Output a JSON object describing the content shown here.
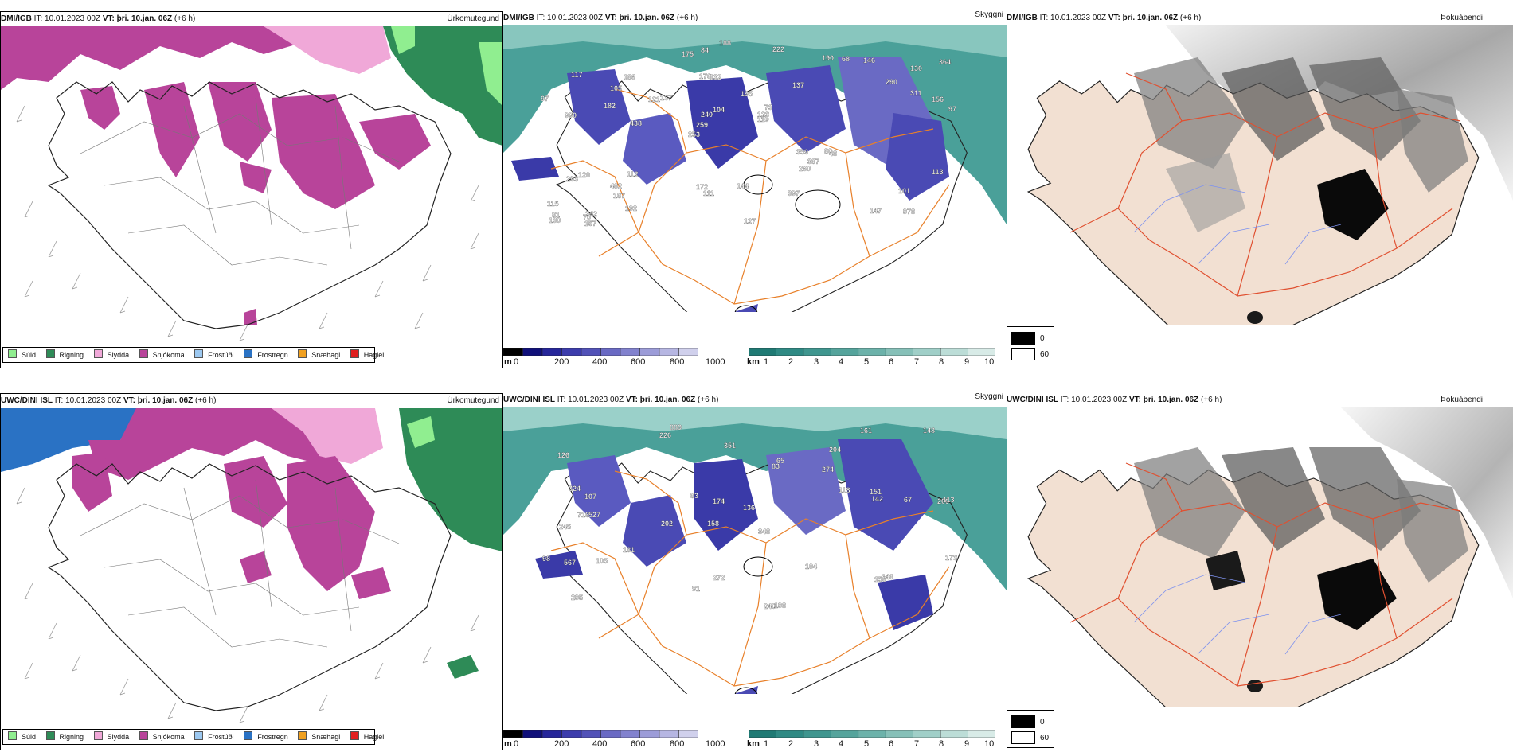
{
  "rows": [
    {
      "source": "DMI/IGB",
      "panels": [
        {
          "id": "precip",
          "title": "Úrkomutegund",
          "it": "IT: 10.01.2023 00Z",
          "vt": "VT: þri. 10.jan. 06Z",
          "lead": "(+6 h)"
        },
        {
          "id": "cloud",
          "title": "Skyggni",
          "it": "IT: 10.01.2023 00Z",
          "vt": "VT: þri. 10.jan. 06Z",
          "lead": "(+6 h)",
          "labels": [
            "978",
            "990",
            "130",
            "253",
            "137",
            "242",
            "176",
            "195",
            "120",
            "137",
            "115",
            "187",
            "132",
            "73",
            "48",
            "117",
            "84",
            "97",
            "359",
            "311",
            "259",
            "172",
            "240",
            "186",
            "190",
            "112",
            "147",
            "101",
            "80",
            "127",
            "121",
            "182",
            "260",
            "192",
            "156",
            "123",
            "81",
            "111",
            "110",
            "293",
            "290",
            "364",
            "387",
            "397",
            "402",
            "157",
            "130",
            "144",
            "146",
            "188",
            "438",
            "97",
            "105",
            "68",
            "70",
            "222",
            "175",
            "104",
            "113"
          ]
        },
        {
          "id": "fog",
          "title": "Þokuábendi",
          "it": "IT: 10.01.2023 00Z",
          "vt": "VT: þri. 10.jan. 06Z",
          "lead": "(+6 h)"
        }
      ]
    },
    {
      "source": "UWC/DINI ISL",
      "panels": [
        {
          "id": "precip",
          "title": "Úrkomutegund",
          "it": "IT: 10.01.2023 00Z",
          "vt": "VT: þri. 10.jan. 06Z",
          "lead": "(+6 h)"
        },
        {
          "id": "cloud",
          "title": "Skyggni",
          "it": "IT: 10.01.2023 00Z",
          "vt": "VT: þri. 10.jan. 06Z",
          "lead": "(+6 h)",
          "labels": [
            "889",
            "204",
            "209",
            "158",
            "348",
            "527",
            "126",
            "274",
            "245",
            "83",
            "136",
            "295",
            "226",
            "202",
            "240",
            "198",
            "272",
            "161",
            "118",
            "181",
            "107",
            "718",
            "113",
            "67",
            "98",
            "324",
            "174",
            "142",
            "148",
            "567",
            "156",
            "65",
            "105",
            "83",
            "104",
            "173",
            "151",
            "91",
            "148",
            "351"
          ]
        },
        {
          "id": "fog",
          "title": "Þokuábendi",
          "it": "IT: 10.01.2023 00Z",
          "vt": "VT: þri. 10.jan. 06Z",
          "lead": "(+6 h)"
        }
      ]
    }
  ],
  "precip_legend": [
    {
      "label": "Súld",
      "color": "#90ee90"
    },
    {
      "label": "Rigning",
      "color": "#2e8b57"
    },
    {
      "label": "Slydda",
      "color": "#f0a8d8"
    },
    {
      "label": "Snjókoma",
      "color": "#b8449a"
    },
    {
      "label": "Frostúði",
      "color": "#9cc8f0"
    },
    {
      "label": "Frostregn",
      "color": "#2a72c4"
    },
    {
      "label": "Snæhagl",
      "color": "#f0a020"
    },
    {
      "label": "Haglél",
      "color": "#e02020"
    }
  ],
  "cloud_base_bar": {
    "unit": "m",
    "ticks": [
      "0",
      "200",
      "400",
      "600",
      "800",
      "1000"
    ],
    "colors": [
      "#000000",
      "#10107a",
      "#26269a",
      "#3c3cac",
      "#5252b8",
      "#6a6ac4",
      "#8282ce",
      "#9c9cd8",
      "#b6b6e2",
      "#d0d0ec"
    ]
  },
  "visibility_bar": {
    "unit": "km",
    "ticks": [
      "1",
      "2",
      "3",
      "4",
      "5",
      "6",
      "7",
      "8",
      "9",
      "10"
    ],
    "colors": [
      "#1f7a74",
      "#2f8a84",
      "#3f968f",
      "#55a49c",
      "#6cb2aa",
      "#86c0b8",
      "#a0cfc8",
      "#bcddd7",
      "#d8ebe7"
    ]
  },
  "fog_legend": [
    {
      "label": "0",
      "color": "#000000"
    },
    {
      "label": "60",
      "color": "#ffffff"
    }
  ],
  "colors": {
    "snow": "#b8449a",
    "sleet": "#f0a8d8",
    "rain": "#2e8b57",
    "drizzle": "#90ee90",
    "freezing_rain": "#2a72c4",
    "teal": "#3f968f",
    "cloud_blue": "#4a4ab4",
    "road": "#e8802a",
    "land_tint": "#f2e0d2",
    "river": "#7e92ee"
  }
}
